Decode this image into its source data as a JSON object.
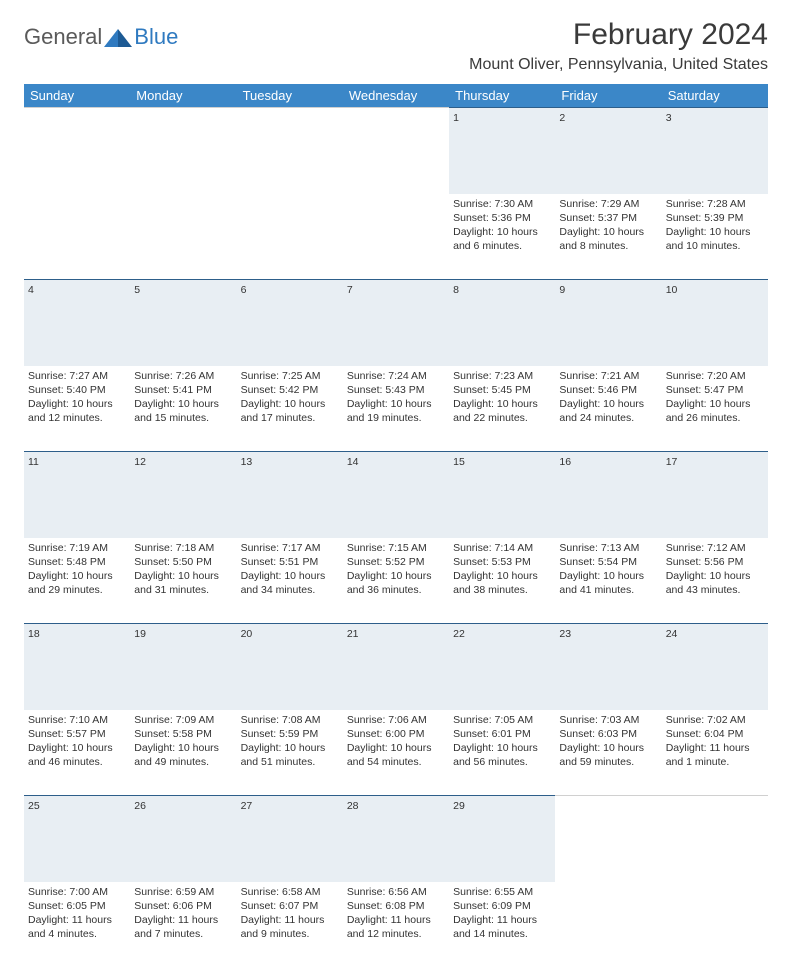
{
  "brand": {
    "general": "General",
    "blue": "Blue"
  },
  "title": "February 2024",
  "location": "Mount Oliver, Pennsylvania, United States",
  "colors": {
    "header_bg": "#3b87c8",
    "header_text": "#ffffff",
    "daynum_bg": "#e8eef3",
    "daynum_border": "#2d5e8a",
    "text": "#333333",
    "brand_blue": "#2f7ac0",
    "brand_gray": "#5a5a5a"
  },
  "day_headers": [
    "Sunday",
    "Monday",
    "Tuesday",
    "Wednesday",
    "Thursday",
    "Friday",
    "Saturday"
  ],
  "weeks": [
    {
      "nums": [
        "",
        "",
        "",
        "",
        "1",
        "2",
        "3"
      ],
      "cells": [
        null,
        null,
        null,
        null,
        {
          "sunrise": "Sunrise: 7:30 AM",
          "sunset": "Sunset: 5:36 PM",
          "d1": "Daylight: 10 hours",
          "d2": "and 6 minutes."
        },
        {
          "sunrise": "Sunrise: 7:29 AM",
          "sunset": "Sunset: 5:37 PM",
          "d1": "Daylight: 10 hours",
          "d2": "and 8 minutes."
        },
        {
          "sunrise": "Sunrise: 7:28 AM",
          "sunset": "Sunset: 5:39 PM",
          "d1": "Daylight: 10 hours",
          "d2": "and 10 minutes."
        }
      ]
    },
    {
      "nums": [
        "4",
        "5",
        "6",
        "7",
        "8",
        "9",
        "10"
      ],
      "cells": [
        {
          "sunrise": "Sunrise: 7:27 AM",
          "sunset": "Sunset: 5:40 PM",
          "d1": "Daylight: 10 hours",
          "d2": "and 12 minutes."
        },
        {
          "sunrise": "Sunrise: 7:26 AM",
          "sunset": "Sunset: 5:41 PM",
          "d1": "Daylight: 10 hours",
          "d2": "and 15 minutes."
        },
        {
          "sunrise": "Sunrise: 7:25 AM",
          "sunset": "Sunset: 5:42 PM",
          "d1": "Daylight: 10 hours",
          "d2": "and 17 minutes."
        },
        {
          "sunrise": "Sunrise: 7:24 AM",
          "sunset": "Sunset: 5:43 PM",
          "d1": "Daylight: 10 hours",
          "d2": "and 19 minutes."
        },
        {
          "sunrise": "Sunrise: 7:23 AM",
          "sunset": "Sunset: 5:45 PM",
          "d1": "Daylight: 10 hours",
          "d2": "and 22 minutes."
        },
        {
          "sunrise": "Sunrise: 7:21 AM",
          "sunset": "Sunset: 5:46 PM",
          "d1": "Daylight: 10 hours",
          "d2": "and 24 minutes."
        },
        {
          "sunrise": "Sunrise: 7:20 AM",
          "sunset": "Sunset: 5:47 PM",
          "d1": "Daylight: 10 hours",
          "d2": "and 26 minutes."
        }
      ]
    },
    {
      "nums": [
        "11",
        "12",
        "13",
        "14",
        "15",
        "16",
        "17"
      ],
      "cells": [
        {
          "sunrise": "Sunrise: 7:19 AM",
          "sunset": "Sunset: 5:48 PM",
          "d1": "Daylight: 10 hours",
          "d2": "and 29 minutes."
        },
        {
          "sunrise": "Sunrise: 7:18 AM",
          "sunset": "Sunset: 5:50 PM",
          "d1": "Daylight: 10 hours",
          "d2": "and 31 minutes."
        },
        {
          "sunrise": "Sunrise: 7:17 AM",
          "sunset": "Sunset: 5:51 PM",
          "d1": "Daylight: 10 hours",
          "d2": "and 34 minutes."
        },
        {
          "sunrise": "Sunrise: 7:15 AM",
          "sunset": "Sunset: 5:52 PM",
          "d1": "Daylight: 10 hours",
          "d2": "and 36 minutes."
        },
        {
          "sunrise": "Sunrise: 7:14 AM",
          "sunset": "Sunset: 5:53 PM",
          "d1": "Daylight: 10 hours",
          "d2": "and 38 minutes."
        },
        {
          "sunrise": "Sunrise: 7:13 AM",
          "sunset": "Sunset: 5:54 PM",
          "d1": "Daylight: 10 hours",
          "d2": "and 41 minutes."
        },
        {
          "sunrise": "Sunrise: 7:12 AM",
          "sunset": "Sunset: 5:56 PM",
          "d1": "Daylight: 10 hours",
          "d2": "and 43 minutes."
        }
      ]
    },
    {
      "nums": [
        "18",
        "19",
        "20",
        "21",
        "22",
        "23",
        "24"
      ],
      "cells": [
        {
          "sunrise": "Sunrise: 7:10 AM",
          "sunset": "Sunset: 5:57 PM",
          "d1": "Daylight: 10 hours",
          "d2": "and 46 minutes."
        },
        {
          "sunrise": "Sunrise: 7:09 AM",
          "sunset": "Sunset: 5:58 PM",
          "d1": "Daylight: 10 hours",
          "d2": "and 49 minutes."
        },
        {
          "sunrise": "Sunrise: 7:08 AM",
          "sunset": "Sunset: 5:59 PM",
          "d1": "Daylight: 10 hours",
          "d2": "and 51 minutes."
        },
        {
          "sunrise": "Sunrise: 7:06 AM",
          "sunset": "Sunset: 6:00 PM",
          "d1": "Daylight: 10 hours",
          "d2": "and 54 minutes."
        },
        {
          "sunrise": "Sunrise: 7:05 AM",
          "sunset": "Sunset: 6:01 PM",
          "d1": "Daylight: 10 hours",
          "d2": "and 56 minutes."
        },
        {
          "sunrise": "Sunrise: 7:03 AM",
          "sunset": "Sunset: 6:03 PM",
          "d1": "Daylight: 10 hours",
          "d2": "and 59 minutes."
        },
        {
          "sunrise": "Sunrise: 7:02 AM",
          "sunset": "Sunset: 6:04 PM",
          "d1": "Daylight: 11 hours",
          "d2": "and 1 minute."
        }
      ]
    },
    {
      "nums": [
        "25",
        "26",
        "27",
        "28",
        "29",
        "",
        ""
      ],
      "cells": [
        {
          "sunrise": "Sunrise: 7:00 AM",
          "sunset": "Sunset: 6:05 PM",
          "d1": "Daylight: 11 hours",
          "d2": "and 4 minutes."
        },
        {
          "sunrise": "Sunrise: 6:59 AM",
          "sunset": "Sunset: 6:06 PM",
          "d1": "Daylight: 11 hours",
          "d2": "and 7 minutes."
        },
        {
          "sunrise": "Sunrise: 6:58 AM",
          "sunset": "Sunset: 6:07 PM",
          "d1": "Daylight: 11 hours",
          "d2": "and 9 minutes."
        },
        {
          "sunrise": "Sunrise: 6:56 AM",
          "sunset": "Sunset: 6:08 PM",
          "d1": "Daylight: 11 hours",
          "d2": "and 12 minutes."
        },
        {
          "sunrise": "Sunrise: 6:55 AM",
          "sunset": "Sunset: 6:09 PM",
          "d1": "Daylight: 11 hours",
          "d2": "and 14 minutes."
        },
        null,
        null
      ]
    }
  ]
}
